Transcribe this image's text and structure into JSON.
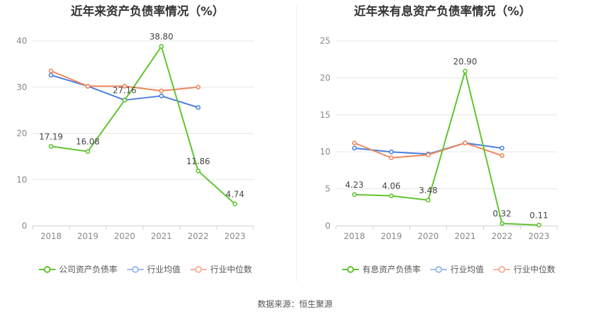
{
  "source_note": "数据来源：恒生聚源",
  "chart_data": [
    {
      "type": "line",
      "title": "近年来资产负债率情况（%）",
      "categories": [
        "2018",
        "2019",
        "2020",
        "2021",
        "2022",
        "2023"
      ],
      "y_ticks": [
        "0",
        "10",
        "20",
        "30",
        "40"
      ],
      "ylim": [
        0,
        40
      ],
      "grid": true,
      "legend_position": "bottom",
      "series": [
        {
          "name": "公司资产负债率",
          "color": "#5fc42d",
          "values": [
            17.19,
            16.08,
            27.16,
            38.8,
            11.86,
            4.74
          ],
          "labels": [
            "17.19",
            "16.08",
            "27.16",
            "38.80",
            "11.86",
            "4.74"
          ]
        },
        {
          "name": "行业均值",
          "color": "#4a7ee0",
          "values": [
            32.6,
            30.2,
            27.2,
            28.1,
            25.6,
            null
          ]
        },
        {
          "name": "行业中位数",
          "color": "#f0855a",
          "values": [
            33.5,
            30.2,
            30.2,
            29.2,
            30.0,
            null
          ]
        }
      ]
    },
    {
      "type": "line",
      "title": "近年来有息资产负债率情况（%）",
      "categories": [
        "2018",
        "2019",
        "2020",
        "2021",
        "2022",
        "2023"
      ],
      "y_ticks": [
        "0",
        "5",
        "10",
        "15",
        "20",
        "25"
      ],
      "ylim": [
        0,
        25
      ],
      "grid": true,
      "legend_position": "bottom",
      "series": [
        {
          "name": "有息资产负债率",
          "color": "#5fc42d",
          "values": [
            4.23,
            4.06,
            3.48,
            20.9,
            0.32,
            0.11
          ],
          "labels": [
            "4.23",
            "4.06",
            "3.48",
            "20.90",
            "0.32",
            "0.11"
          ]
        },
        {
          "name": "行业均值",
          "color": "#4a7ee0",
          "values": [
            10.5,
            10.0,
            9.7,
            11.2,
            10.5,
            null
          ]
        },
        {
          "name": "行业中位数",
          "color": "#f0855a",
          "values": [
            11.2,
            9.2,
            9.6,
            11.2,
            9.5,
            null
          ]
        }
      ]
    }
  ]
}
